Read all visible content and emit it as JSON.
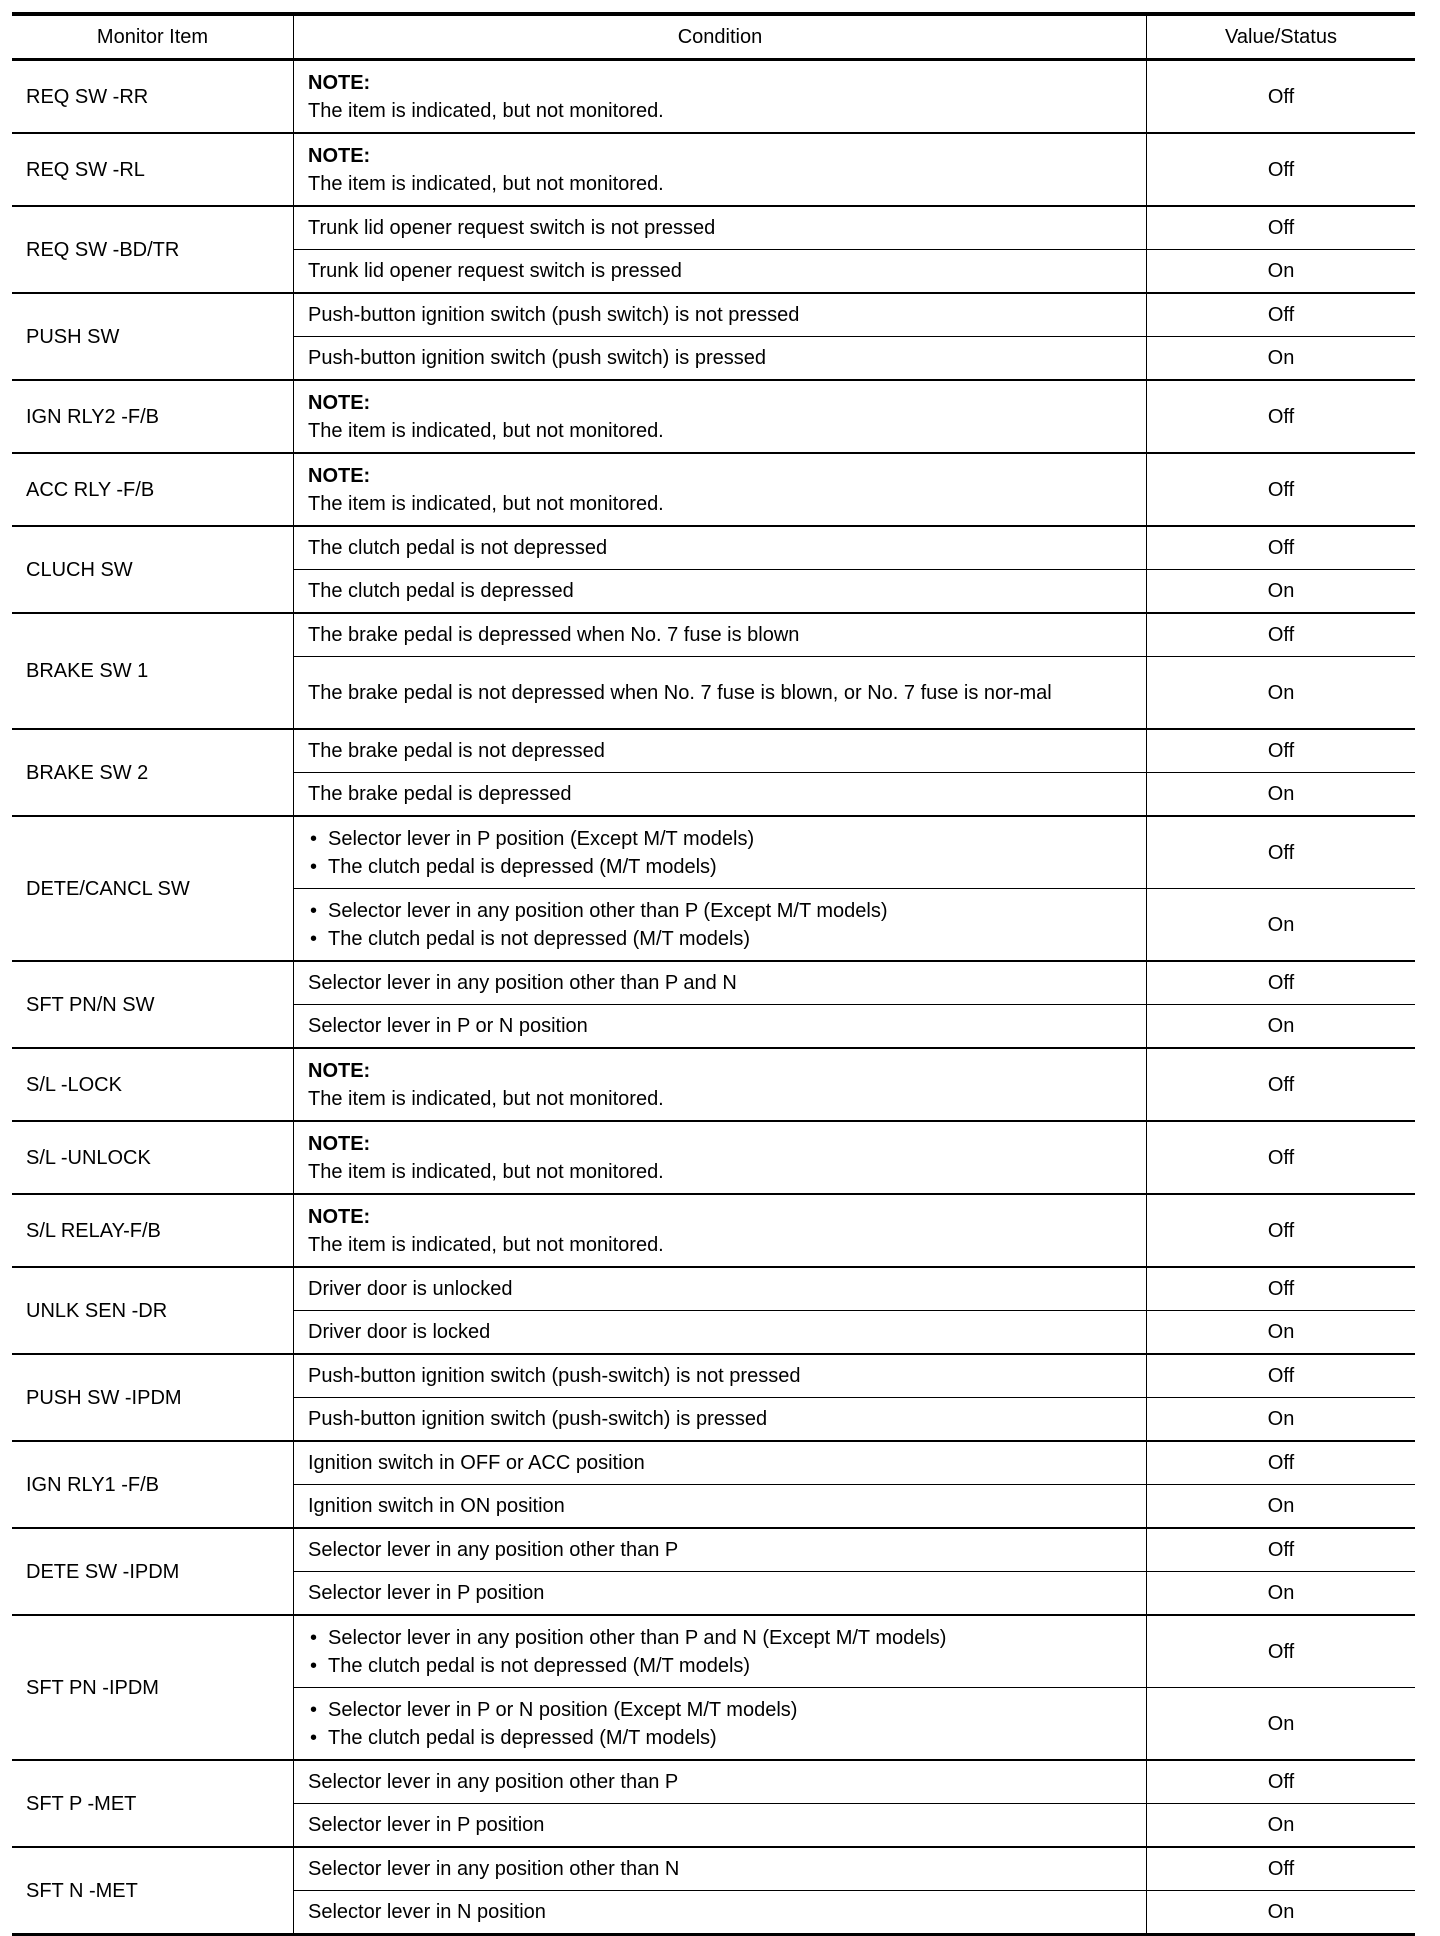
{
  "headers": {
    "item": "Monitor Item",
    "condition": "Condition",
    "value": "Value/Status"
  },
  "rows": [
    {
      "item": "REQ SW -RR",
      "conditions": [
        {
          "note": "NOTE:",
          "text": "The item is indicated, but not monitored.",
          "value": "Off"
        }
      ]
    },
    {
      "item": "REQ SW -RL",
      "conditions": [
        {
          "note": "NOTE:",
          "text": "The item is indicated, but not monitored.",
          "value": "Off"
        }
      ]
    },
    {
      "item": "REQ SW -BD/TR",
      "conditions": [
        {
          "text": "Trunk lid opener request switch is not pressed",
          "value": "Off"
        },
        {
          "text": "Trunk lid opener request switch is pressed",
          "value": "On"
        }
      ]
    },
    {
      "item": "PUSH SW",
      "conditions": [
        {
          "text": "Push-button ignition switch (push switch) is not pressed",
          "value": "Off"
        },
        {
          "text": "Push-button ignition switch (push switch) is pressed",
          "value": "On"
        }
      ]
    },
    {
      "item": "IGN RLY2 -F/B",
      "conditions": [
        {
          "note": "NOTE:",
          "text": "The item is indicated, but not monitored.",
          "value": "Off"
        }
      ]
    },
    {
      "item": "ACC RLY -F/B",
      "conditions": [
        {
          "note": "NOTE:",
          "text": "The item is indicated, but not monitored.",
          "value": "Off"
        }
      ]
    },
    {
      "item": "CLUCH SW",
      "conditions": [
        {
          "text": "The clutch pedal is not depressed",
          "value": "Off"
        },
        {
          "text": "The clutch pedal is depressed",
          "value": "On"
        }
      ]
    },
    {
      "item": "BRAKE SW 1",
      "conditions": [
        {
          "text": "The brake pedal is depressed when No. 7 fuse is blown",
          "value": "Off"
        },
        {
          "text": "The brake pedal is not depressed when No. 7 fuse is blown, or No. 7 fuse is nor-mal",
          "value": "On",
          "tall": true
        }
      ]
    },
    {
      "item": "BRAKE SW 2",
      "conditions": [
        {
          "text": "The brake pedal is not depressed",
          "value": "Off"
        },
        {
          "text": "The brake pedal is depressed",
          "value": "On"
        }
      ]
    },
    {
      "item": "DETE/CANCL SW",
      "conditions": [
        {
          "bullets": [
            "Selector lever in P position (Except M/T models)",
            "The clutch pedal is depressed (M/T models)"
          ],
          "value": "Off"
        },
        {
          "bullets": [
            "Selector lever in any position other than P (Except M/T models)",
            "The clutch pedal is not depressed (M/T models)"
          ],
          "value": "On"
        }
      ]
    },
    {
      "item": "SFT PN/N SW",
      "conditions": [
        {
          "text": "Selector lever in any position other than P and N",
          "value": "Off"
        },
        {
          "text": "Selector lever in P or N position",
          "value": "On"
        }
      ]
    },
    {
      "item": "S/L -LOCK",
      "conditions": [
        {
          "note": "NOTE:",
          "text": "The item is indicated, but not monitored.",
          "value": "Off"
        }
      ]
    },
    {
      "item": "S/L -UNLOCK",
      "conditions": [
        {
          "note": "NOTE:",
          "text": "The item is indicated, but not monitored.",
          "value": "Off"
        }
      ]
    },
    {
      "item": "S/L RELAY-F/B",
      "conditions": [
        {
          "note": "NOTE:",
          "text": "The item is indicated, but not monitored.",
          "value": "Off"
        }
      ]
    },
    {
      "item": "UNLK SEN -DR",
      "conditions": [
        {
          "text": "Driver door is unlocked",
          "value": "Off"
        },
        {
          "text": "Driver door is locked",
          "value": "On"
        }
      ]
    },
    {
      "item": "PUSH SW -IPDM",
      "conditions": [
        {
          "text": "Push-button ignition switch (push-switch) is not pressed",
          "value": "Off"
        },
        {
          "text": "Push-button ignition switch (push-switch) is pressed",
          "value": "On"
        }
      ]
    },
    {
      "item": "IGN RLY1 -F/B",
      "conditions": [
        {
          "text": "Ignition switch in OFF or ACC position",
          "value": "Off"
        },
        {
          "text": "Ignition switch in ON position",
          "value": "On"
        }
      ]
    },
    {
      "item": "DETE SW -IPDM",
      "conditions": [
        {
          "text": "Selector lever in any position other than P",
          "value": "Off"
        },
        {
          "text": "Selector lever in P position",
          "value": "On"
        }
      ]
    },
    {
      "item": "SFT PN -IPDM",
      "conditions": [
        {
          "bullets": [
            "Selector lever in any position other than P and N (Except M/T models)",
            "The clutch pedal is not depressed (M/T models)"
          ],
          "value": "Off"
        },
        {
          "bullets": [
            "Selector lever in P or N position (Except M/T models)",
            "The clutch pedal is depressed (M/T models)"
          ],
          "value": "On"
        }
      ]
    },
    {
      "item": "SFT P -MET",
      "conditions": [
        {
          "text": "Selector lever in any position other than P",
          "value": "Off"
        },
        {
          "text": "Selector lever in P position",
          "value": "On"
        }
      ]
    },
    {
      "item": "SFT N -MET",
      "conditions": [
        {
          "text": "Selector lever in any position other than N",
          "value": "Off"
        },
        {
          "text": "Selector lever in N position",
          "value": "On"
        }
      ]
    }
  ]
}
